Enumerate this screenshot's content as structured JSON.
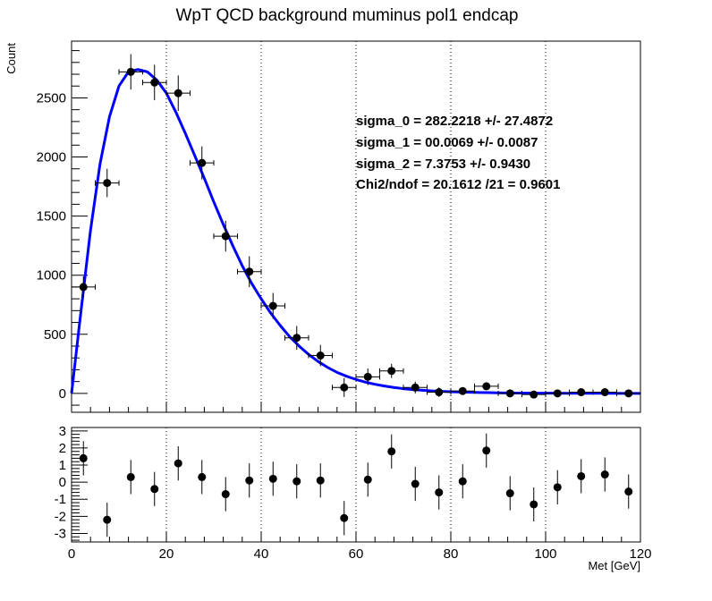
{
  "chart_data": [
    {
      "type": "scatter",
      "title": "WpT QCD background muminus pol1 endcap",
      "xlabel": "Met [GeV]",
      "ylabel": "Count",
      "xlim": [
        0,
        120
      ],
      "ylim": [
        -160,
        2980
      ],
      "y_ticks": [
        0,
        500,
        1000,
        1500,
        2000,
        2500
      ],
      "x_ticks": [
        0,
        20,
        40,
        60,
        80,
        100,
        120
      ],
      "grid_x": true,
      "grid_y": false,
      "series": [
        {
          "kind": "points",
          "x": [
            2.5,
            7.5,
            12.5,
            17.5,
            22.5,
            27.5,
            32.5,
            37.5,
            42.5,
            47.5,
            52.5,
            57.5,
            62.5,
            67.5,
            72.5,
            77.5,
            82.5,
            87.5,
            92.5,
            97.5,
            102.5,
            107.5,
            112.5,
            117.5
          ],
          "y": [
            900,
            1780,
            2720,
            2630,
            2540,
            1950,
            1330,
            1030,
            740,
            470,
            320,
            50,
            140,
            190,
            50,
            10,
            20,
            60,
            0,
            -10,
            0,
            10,
            10,
            0
          ],
          "xerr": 2.5,
          "yerr": [
            90,
            120,
            150,
            150,
            150,
            140,
            130,
            130,
            110,
            100,
            90,
            80,
            70,
            60,
            50,
            40,
            30,
            30,
            20,
            20,
            20,
            20,
            20,
            20
          ]
        },
        {
          "kind": "fit",
          "color": "#0000ff",
          "x": [
            0,
            2,
            4,
            6,
            8,
            10,
            12,
            14,
            16,
            18,
            20,
            22,
            24,
            26,
            28,
            30,
            32,
            34,
            36,
            38,
            40,
            42,
            44,
            46,
            48,
            50,
            52,
            54,
            56,
            58,
            60,
            62,
            64,
            66,
            68,
            70,
            72,
            74,
            76,
            78,
            80,
            82,
            84,
            86,
            88,
            90,
            92,
            94,
            96,
            98,
            100,
            102,
            104,
            106,
            108,
            110,
            112,
            114,
            116,
            118,
            120
          ],
          "y": [
            0,
            700,
            1380,
            1940,
            2340,
            2600,
            2720,
            2740,
            2720,
            2650,
            2540,
            2380,
            2200,
            2010,
            1820,
            1620,
            1430,
            1250,
            1080,
            930,
            800,
            680,
            575,
            480,
            400,
            330,
            270,
            220,
            178,
            145,
            118,
            95,
            77,
            62,
            50,
            40,
            32,
            26,
            21,
            17,
            14,
            11,
            9,
            7,
            6,
            5,
            4,
            3,
            2.5,
            2,
            1.6,
            1.3,
            1,
            0.8,
            0.6,
            0.5,
            0.4,
            0.3,
            0.2,
            0.2,
            0.1
          ]
        }
      ],
      "stats": [
        "sigma_0 = 282.2218  +/- 27.4872",
        "sigma_1 = 00.0069  +/- 0.0087",
        "sigma_2 = 7.3753  +/- 0.9430",
        "Chi2/ndof = 20.1612 /21 = 0.9601"
      ]
    },
    {
      "type": "scatter",
      "xlabel": "Met [GeV]",
      "xlim": [
        0,
        120
      ],
      "ylim": [
        -3.5,
        3.2
      ],
      "y_ticks": [
        -3,
        -2,
        -1,
        0,
        1,
        2,
        3
      ],
      "x_ticks": [
        0,
        20,
        40,
        60,
        80,
        100,
        120
      ],
      "grid_x": true,
      "series": [
        {
          "kind": "points",
          "x": [
            2.5,
            7.5,
            12.5,
            17.5,
            22.5,
            27.5,
            32.5,
            37.5,
            42.5,
            47.5,
            52.5,
            57.5,
            62.5,
            67.5,
            72.5,
            77.5,
            82.5,
            87.5,
            92.5,
            97.5,
            102.5,
            107.5,
            112.5,
            117.5
          ],
          "y": [
            1.4,
            -2.2,
            0.3,
            -0.4,
            1.1,
            0.3,
            -0.7,
            0.1,
            0.2,
            0.05,
            0.1,
            -2.1,
            0.15,
            1.8,
            -0.1,
            -0.6,
            0.05,
            1.85,
            -0.65,
            -1.3,
            -0.3,
            0.35,
            0.45,
            -0.55
          ],
          "yerr": 1.0
        }
      ]
    }
  ]
}
